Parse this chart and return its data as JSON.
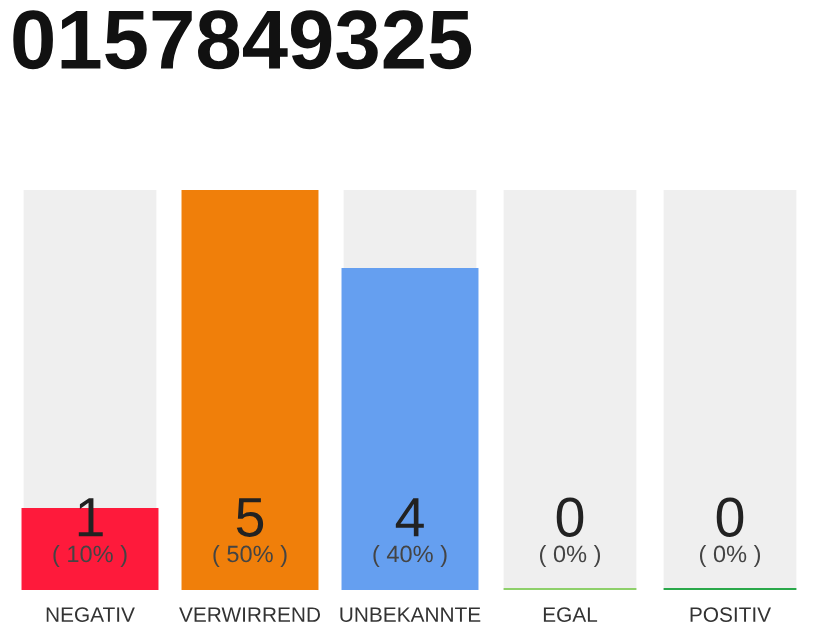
{
  "chart_data": {
    "type": "bar",
    "title": "0157849325",
    "categories": [
      "NEGATIV",
      "VERWIRREND",
      "UNBEKANNTE",
      "EGAL",
      "POSITIV"
    ],
    "values": [
      1,
      5,
      4,
      0,
      0
    ],
    "colors": [
      "#fe1a3b",
      "#f07f0a",
      "#659ff0",
      "#8ed06a",
      "#2aa84a"
    ],
    "value_labels": [
      "1\n( 10% )",
      "5\n( 50% )",
      "4\n( 40% )",
      "0\n( 0% )",
      "0\n( 0% )"
    ],
    "ylim": [
      0,
      5
    ],
    "grid": false,
    "legend": false
  }
}
